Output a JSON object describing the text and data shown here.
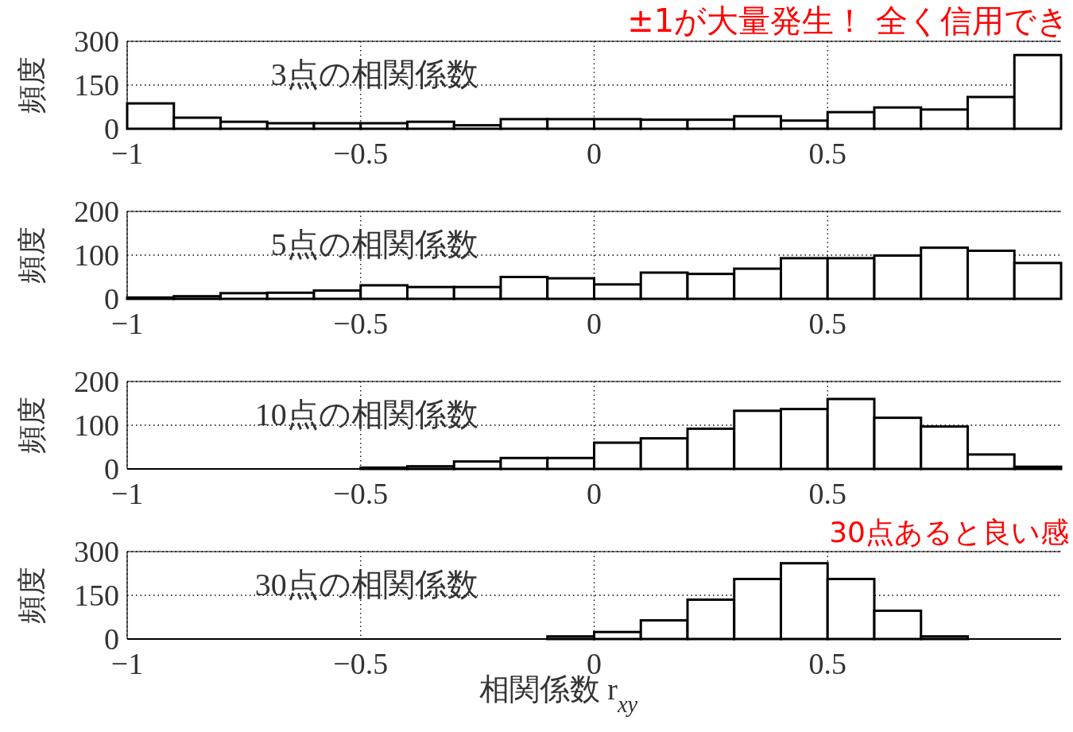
{
  "chart_data": [
    {
      "type": "histogram",
      "title": "3点の相関係数",
      "ylabel": "頻度",
      "bins": [
        -1,
        -0.9,
        -0.8,
        -0.7,
        -0.6,
        -0.5,
        -0.4,
        -0.3,
        -0.2,
        -0.1,
        0,
        0.1,
        0.2,
        0.3,
        0.4,
        0.5,
        0.6,
        0.7,
        0.8,
        0.9,
        1
      ],
      "values": [
        87,
        38,
        24,
        19,
        19,
        19,
        24,
        12,
        33,
        33,
        33,
        31,
        31,
        43,
        28,
        57,
        73,
        66,
        109,
        253
      ],
      "xlim": [
        -1,
        1
      ],
      "xticks": [
        -1,
        -0.5,
        0,
        0.5
      ],
      "ylim": [
        0,
        300
      ],
      "yticks": [
        0,
        150,
        300
      ],
      "grid": true,
      "annotations": [
        "±1が大量発生！ 全く信用でき"
      ]
    },
    {
      "type": "histogram",
      "title": "5点の相関係数",
      "ylabel": "頻度",
      "bins": [
        -1,
        -0.9,
        -0.8,
        -0.7,
        -0.6,
        -0.5,
        -0.4,
        -0.3,
        -0.2,
        -0.1,
        0,
        0.1,
        0.2,
        0.3,
        0.4,
        0.5,
        0.6,
        0.7,
        0.8,
        0.9,
        1
      ],
      "values": [
        3,
        6,
        13,
        14,
        19,
        31,
        27,
        27,
        50,
        47,
        33,
        60,
        57,
        69,
        93,
        93,
        99,
        117,
        110,
        82
      ],
      "xlim": [
        -1,
        1
      ],
      "xticks": [
        -1,
        -0.5,
        0,
        0.5
      ],
      "ylim": [
        0,
        200
      ],
      "yticks": [
        0,
        100,
        200
      ],
      "grid": true
    },
    {
      "type": "histogram",
      "title": "10点の相関係数",
      "ylabel": "頻度",
      "bins": [
        -1,
        -0.9,
        -0.8,
        -0.7,
        -0.6,
        -0.5,
        -0.4,
        -0.3,
        -0.2,
        -0.1,
        0,
        0.1,
        0.2,
        0.3,
        0.4,
        0.5,
        0.6,
        0.7,
        0.8,
        0.9,
        1
      ],
      "values": [
        0,
        0,
        0,
        0,
        0,
        3,
        6,
        17,
        25,
        25,
        60,
        70,
        92,
        133,
        137,
        160,
        117,
        97,
        33,
        5
      ],
      "xlim": [
        -1,
        1
      ],
      "xticks": [
        -1,
        -0.5,
        0,
        0.5
      ],
      "ylim": [
        0,
        200
      ],
      "yticks": [
        0,
        100,
        200
      ],
      "grid": true,
      "annotations": [
        "30点あると良い感"
      ]
    },
    {
      "type": "histogram",
      "title": "30点の相関係数",
      "ylabel": "頻度",
      "xlabel": "相関係数 r$_{xy}$",
      "bins": [
        -1,
        -0.9,
        -0.8,
        -0.7,
        -0.6,
        -0.5,
        -0.4,
        -0.3,
        -0.2,
        -0.1,
        0,
        0.1,
        0.2,
        0.3,
        0.4,
        0.5,
        0.6,
        0.7,
        0.8,
        0.9,
        1
      ],
      "values": [
        0,
        0,
        0,
        0,
        0,
        0,
        0,
        0,
        0,
        9,
        24,
        64,
        135,
        206,
        260,
        206,
        97,
        9,
        0,
        0
      ],
      "xlim": [
        -1,
        1
      ],
      "xticks": [
        -1,
        -0.5,
        0,
        0.5
      ],
      "ylim": [
        0,
        300
      ],
      "yticks": [
        0,
        150,
        300
      ],
      "grid": true
    }
  ]
}
